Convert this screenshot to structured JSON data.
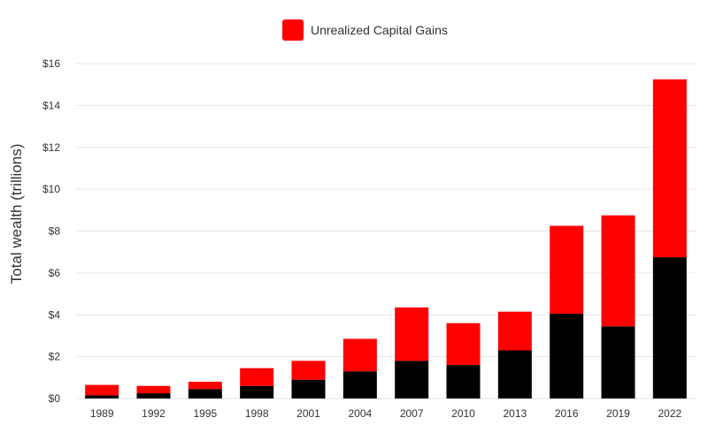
{
  "chart_data": {
    "type": "bar",
    "stacked": true,
    "categories": [
      "1989",
      "1992",
      "1995",
      "1998",
      "2001",
      "2004",
      "2007",
      "2010",
      "2013",
      "2016",
      "2019",
      "2022"
    ],
    "series": [
      {
        "color": "#000000",
        "values": [
          0.15,
          0.25,
          0.45,
          0.6,
          0.9,
          1.3,
          1.8,
          1.6,
          2.3,
          4.05,
          3.45,
          6.75
        ]
      },
      {
        "name": "Unrealized Capital Gains",
        "color": "#ff0000",
        "values": [
          0.5,
          0.35,
          0.35,
          0.85,
          0.9,
          1.55,
          2.55,
          2.0,
          1.85,
          4.2,
          5.3,
          8.5
        ]
      }
    ],
    "ylabel": "Total wealth (trillions)",
    "xlabel": "",
    "ylim": [
      0,
      16
    ],
    "yticks": [
      "$0",
      "$2",
      "$4",
      "$6",
      "$8",
      "$10",
      "$12",
      "$14",
      "$16"
    ],
    "grid": true,
    "legend": "top-center"
  }
}
